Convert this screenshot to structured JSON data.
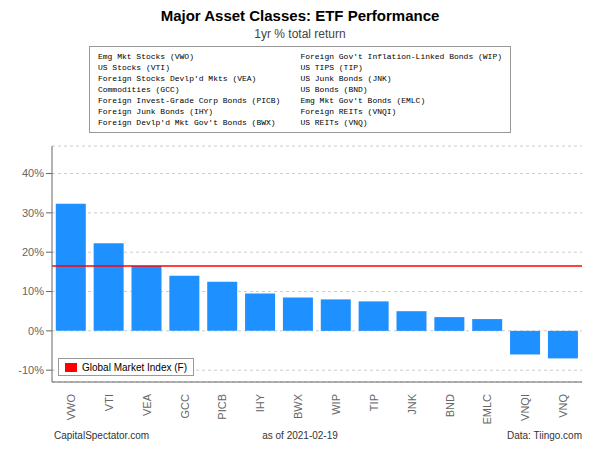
{
  "chart_data": {
    "type": "bar",
    "title": "Major Asset Classes: ETF Performance",
    "subtitle": "1yr % total return",
    "categories": [
      "VWO",
      "VTI",
      "VEA",
      "GCC",
      "PICB",
      "IHY",
      "BWX",
      "WIP",
      "TIP",
      "JNK",
      "BND",
      "EMLC",
      "VNQI",
      "VNQ"
    ],
    "values": [
      32.3,
      22.3,
      16.5,
      14.0,
      12.5,
      9.5,
      8.5,
      8.0,
      7.5,
      5.0,
      3.5,
      3.0,
      -6.0,
      -7.0
    ],
    "color": "#1E90FF",
    "ylim": [
      -13,
      47
    ],
    "yticks": [
      {
        "value": -10,
        "label": "-10%"
      },
      {
        "value": 0,
        "label": "0%"
      },
      {
        "value": 10,
        "label": "10%"
      },
      {
        "value": 20,
        "label": "20%"
      },
      {
        "value": 30,
        "label": "30%"
      },
      {
        "value": 40,
        "label": "40%"
      }
    ],
    "grid": true,
    "legend": "lower left",
    "hline": {
      "value": 16.5,
      "label": "Global Market Index (F)",
      "color": "#FF0000"
    },
    "annotations_left": [
      "Emg Mkt Stocks (VWO)",
      "US Stocks (VTI)",
      "Foreign Stocks Devlp'd Mkts (VEA)",
      "Commodities (GCC)",
      "Foreign Invest-Grade Corp Bonds (PICB)",
      "Foreign Junk Bonds (IHY)",
      "Foreign Devlp'd Mkt Gov't Bonds (BWX)"
    ],
    "annotations_right": [
      "Foreign Gov't Inflation-Linked Bonds (WIP)",
      "US TIPS (TIP)",
      "US Junk Bonds (JNK)",
      "US Bonds (BND)",
      "Emg Mkt Gov't Bonds (EMLC)",
      "Foreign REITs (VNQI)",
      "US REITs (VNQ)"
    ],
    "footer_left": "CapitalSpectator.com",
    "footer_center": "as of  2021-02-19",
    "footer_right": "Data: Tiingo.com"
  }
}
